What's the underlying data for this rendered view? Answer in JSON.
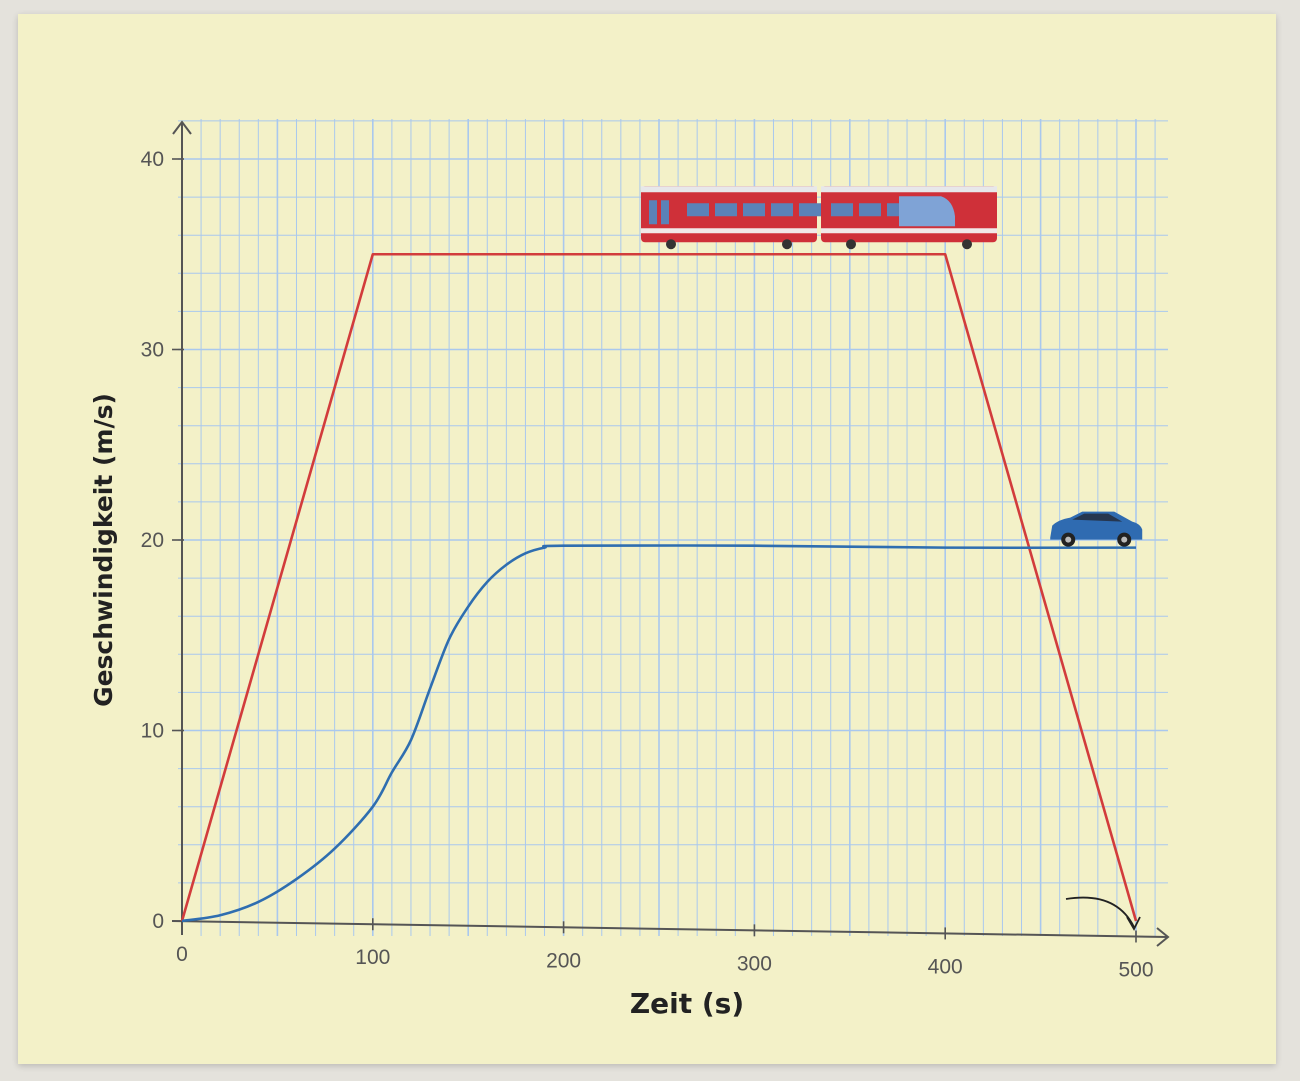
{
  "chart_data": {
    "type": "line",
    "title": "",
    "xlabel": "Zeit (s)",
    "ylabel": "Geschwindigkeit (m/s)",
    "xlim": [
      0,
      500
    ],
    "ylim": [
      0,
      40
    ],
    "xticks": [
      0,
      100,
      200,
      300,
      400,
      500
    ],
    "yticks": [
      0,
      10,
      20,
      30,
      40
    ],
    "xtick_labels": [
      "0",
      "100",
      "200",
      "300",
      "400",
      "500"
    ],
    "ytick_labels": [
      "0",
      "10",
      "20",
      "30",
      "40"
    ],
    "grid": true,
    "series": [
      {
        "icon": "train-icon",
        "color": "#d23c3c",
        "x": [
          0,
          100,
          400,
          500
        ],
        "y": [
          0,
          35,
          35,
          0
        ]
      },
      {
        "icon": "car-icon",
        "color": "#2f6eb0",
        "x": [
          0,
          20,
          40,
          60,
          80,
          100,
          110,
          120,
          130,
          140,
          150,
          160,
          170,
          180,
          190,
          200,
          300,
          400,
          500
        ],
        "y": [
          0,
          0.3,
          1.0,
          2.2,
          3.8,
          6.0,
          7.8,
          9.5,
          12.2,
          14.8,
          16.5,
          17.8,
          18.7,
          19.3,
          19.6,
          19.7,
          19.7,
          19.6,
          19.6
        ]
      }
    ]
  },
  "colors": {
    "paper": "#f3f1c8",
    "grid": "#a9c8ee",
    "axis": "#555555"
  }
}
